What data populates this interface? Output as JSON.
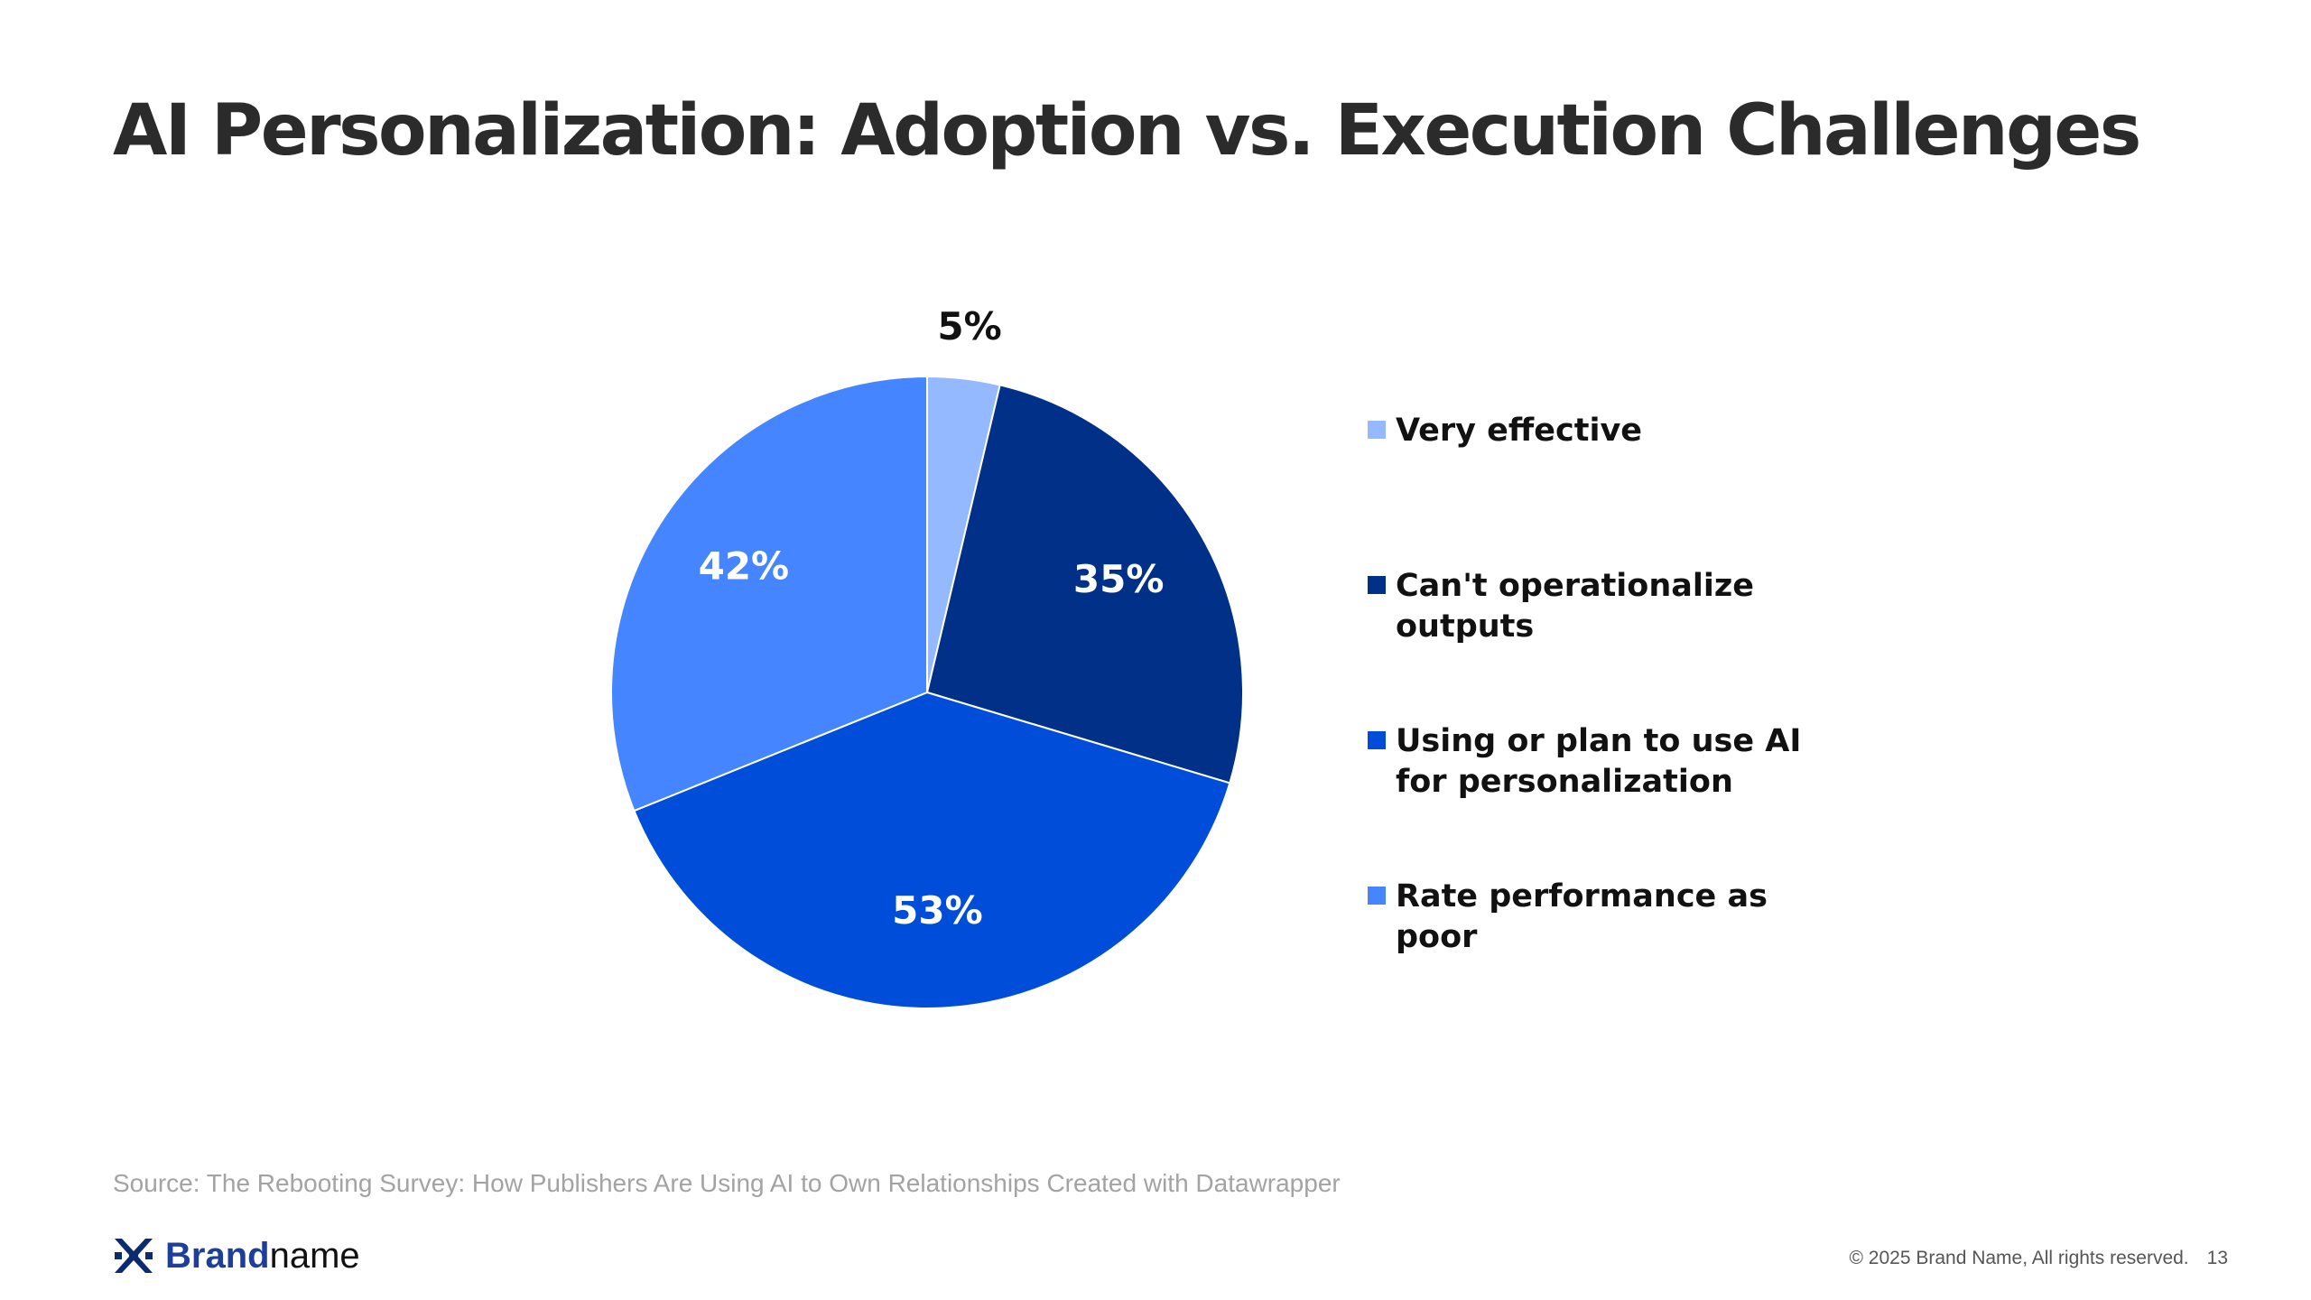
{
  "title": "AI Personalization: Adoption vs. Execution Challenges",
  "chart_data": {
    "type": "pie",
    "title": "AI Personalization: Adoption vs. Execution Challenges",
    "start_angle_deg": 0,
    "direction": "clockwise",
    "slices": [
      {
        "label": "Very effective",
        "value": 5,
        "value_label": "5%",
        "color": "#94b9ff",
        "label_color": "#111111"
      },
      {
        "label": "Can't operationalize outputs",
        "value": 35,
        "value_label": "35%",
        "color": "#003087",
        "label_color": "#ffffff"
      },
      {
        "label": "Using or plan to use AI for personalization",
        "value": 53,
        "value_label": "53%",
        "color": "#004dda",
        "label_color": "#ffffff"
      },
      {
        "label": "Rate performance as poor",
        "value": 42,
        "value_label": "42%",
        "color": "#4585ff",
        "label_color": "#ffffff"
      }
    ],
    "legend_position": "right"
  },
  "source": "Source: The Rebooting Survey: How Publishers Are Using AI to Own Relationships Created with Datawrapper",
  "brand": {
    "bold": "Brand",
    "regular": "name",
    "logo_icon": "brand-logo-icon"
  },
  "footer": {
    "copyright": "© 2025 Brand Name, All rights reserved.",
    "page_number": "13"
  }
}
